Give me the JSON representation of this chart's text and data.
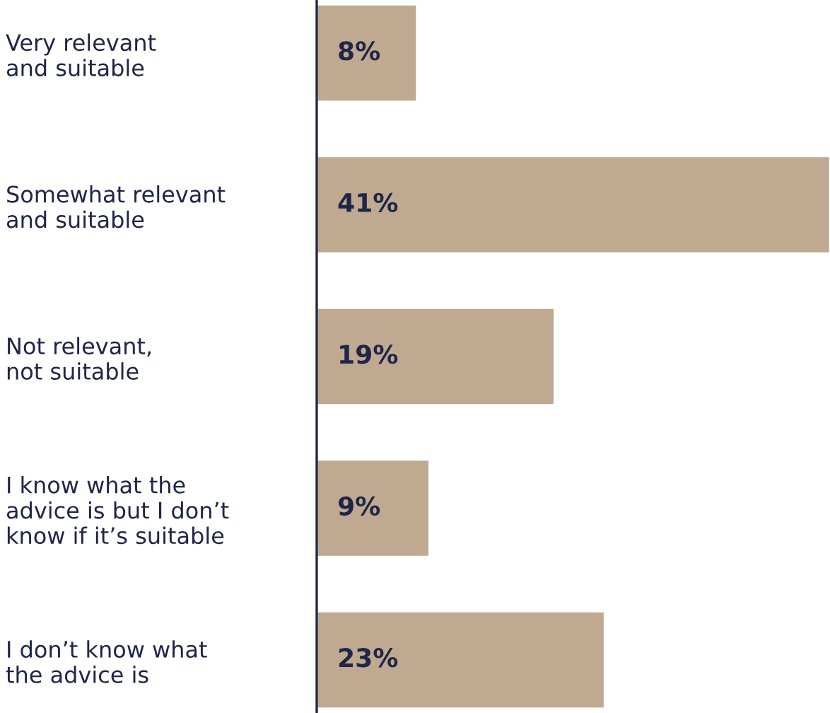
{
  "chart_data": {
    "type": "bar",
    "orientation": "horizontal",
    "categories": [
      "Very relevant\nand suitable",
      "Somewhat relevant\nand suitable",
      "Not relevant,\nnot suitable",
      "I know what the\nadvice is but I don’t\nknow if it’s suitable",
      "I don’t know what\nthe advice is"
    ],
    "values": [
      8,
      41,
      19,
      9,
      23
    ],
    "value_labels": [
      "8%",
      "41%",
      "19%",
      "9%",
      "23%"
    ],
    "color": "#bfa990"
  }
}
